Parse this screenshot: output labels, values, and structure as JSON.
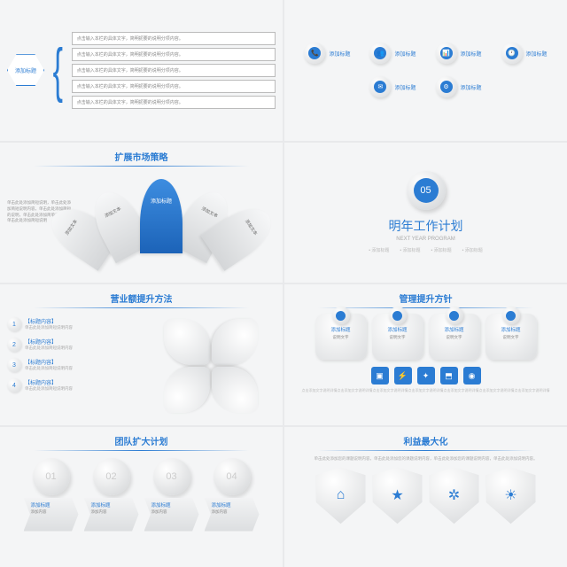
{
  "colors": {
    "accent": "#2B7CD3",
    "bg": "#e8e9eb",
    "slide_bg": "#f4f5f6",
    "muted": "#999"
  },
  "slide1": {
    "hex_label": "添加标题",
    "rows": [
      "点击输入本栏的具体文字，简明扼要的说明分项内容。",
      "点击输入本栏的具体文字，简明扼要的说明分项内容。",
      "点击输入本栏的具体文字，简明扼要的说明分项内容。",
      "点击输入本栏的具体文字，简明扼要的说明分项内容。",
      "点击输入本栏的具体文字，简明扼要的说明分项内容。"
    ]
  },
  "slide2": {
    "items": [
      {
        "icon": "📞",
        "label": "添加标题"
      },
      {
        "icon": "👥",
        "label": "添加标题"
      },
      {
        "icon": "📊",
        "label": "添加标题"
      },
      {
        "icon": "🕐",
        "label": "添加标题"
      },
      {
        "icon": "✉",
        "label": "添加标题"
      },
      {
        "icon": "⚙",
        "label": "添加标题"
      }
    ]
  },
  "slide3": {
    "title": "扩展市场策略",
    "desc": "单击此处添加简短说明，单击此处添加简短说明内容，单击此处添加简短的说明，单击此处添加简单说明文字单击此处添加简短说明",
    "segments": [
      "添加文本",
      "添加文本",
      "添加标题",
      "添加文本",
      "添加文本"
    ]
  },
  "slide4": {
    "number": "05",
    "title": "明年工作计划",
    "subtitle": "NEXT YEAR PROGRAM",
    "tags": [
      "添加标题",
      "添加标题",
      "添加标题",
      "添加标题"
    ]
  },
  "slide5": {
    "title": "营业额提升方法",
    "items": [
      {
        "n": "1",
        "t": "【标题内容】",
        "d": "单击此处添加简短说明内容"
      },
      {
        "n": "2",
        "t": "【标题内容】",
        "d": "单击此处添加简短说明内容"
      },
      {
        "n": "3",
        "t": "【标题内容】",
        "d": "单击此处添加简短说明内容"
      },
      {
        "n": "4",
        "t": "【标题内容】",
        "d": "单击此处添加简短说明内容"
      }
    ]
  },
  "slide6": {
    "title": "管理提升方针",
    "cards": [
      {
        "t": "添加标题",
        "d": "说明文字"
      },
      {
        "t": "添加标题",
        "d": "说明文字"
      },
      {
        "t": "添加标题",
        "d": "说明文字"
      },
      {
        "t": "添加标题",
        "d": "说明文字"
      }
    ],
    "icons": [
      "▣",
      "⚡",
      "✦",
      "⬒",
      "◉"
    ],
    "desc": "点击添加文字说明详情点击添加文字说明详情点击添加文字说明详情点击添加文字说明详情点击添加文字说明详情点击添加文字说明详情点击添加文字说明详情"
  },
  "slide7": {
    "title": "团队扩大计划",
    "items": [
      {
        "n": "01",
        "t": "添加标题",
        "d": "添加内容"
      },
      {
        "n": "02",
        "t": "添加标题",
        "d": "添加内容"
      },
      {
        "n": "03",
        "t": "添加标题",
        "d": "添加内容"
      },
      {
        "n": "04",
        "t": "添加标题",
        "d": "添加内容"
      }
    ]
  },
  "slide8": {
    "title": "利益最大化",
    "desc": "单击此处添加您的课题说明内容，单击此处添加您的课题说明内容，单击此处添加您的课题说明内容，单击此处添加说明内容。",
    "icons": [
      "⌂",
      "★",
      "✲",
      "☀"
    ]
  }
}
